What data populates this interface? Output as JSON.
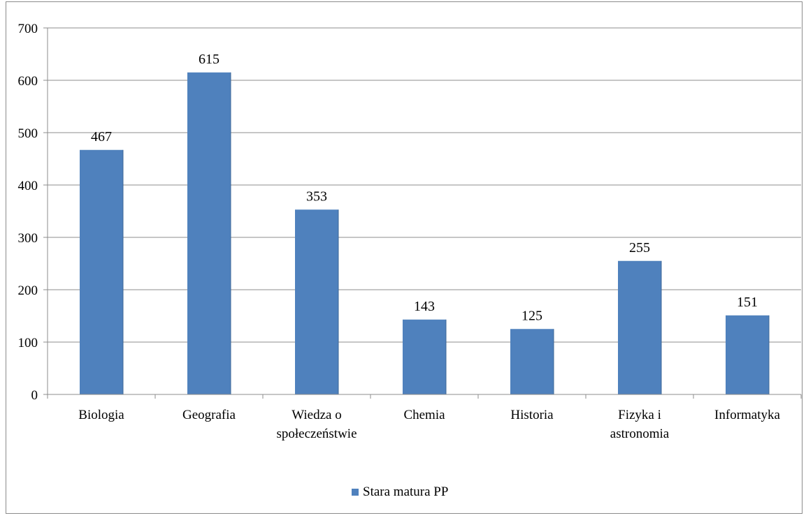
{
  "chart_data": {
    "type": "bar",
    "categories": [
      [
        "Biologia"
      ],
      [
        "Geografia"
      ],
      [
        "Wiedza o",
        "społeczeństwie"
      ],
      [
        "Chemia"
      ],
      [
        "Historia"
      ],
      [
        "Fizyka i",
        "astronomia"
      ],
      [
        "Informatyka"
      ]
    ],
    "series": [
      {
        "name": "Stara matura PP",
        "values": [
          467,
          615,
          353,
          143,
          125,
          255,
          151
        ]
      }
    ],
    "ylim": [
      0,
      700
    ],
    "yticks": [
      0,
      100,
      200,
      300,
      400,
      500,
      600,
      700
    ],
    "grid": true,
    "data_labels": true,
    "legend_position": "bottom",
    "bar_color": "#4f81bd"
  }
}
